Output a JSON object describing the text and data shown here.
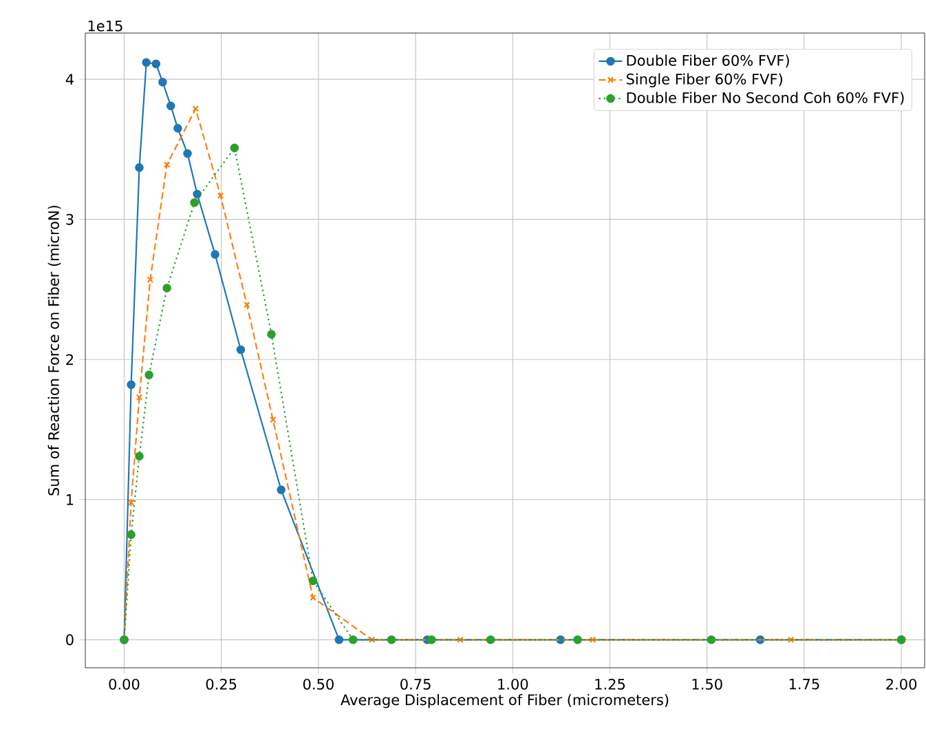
{
  "chart_data": {
    "type": "line",
    "xlabel": "Average Displacement of Fiber (micrometers)",
    "ylabel": "Sum of Reaction Force on Fiber (microN)",
    "annotations": [
      "1e15"
    ],
    "xlim": [
      -0.1,
      2.06
    ],
    "ylim": [
      -0.2,
      4.33
    ],
    "xticks": [
      {
        "value": 0,
        "label": "0.00"
      },
      {
        "value": 0.25,
        "label": "0.25"
      },
      {
        "value": 0.5,
        "label": "0.50"
      },
      {
        "value": 0.75,
        "label": "0.75"
      },
      {
        "value": 1,
        "label": "1.00"
      },
      {
        "value": 1.25,
        "label": "1.25"
      },
      {
        "value": 1.5,
        "label": "1.50"
      },
      {
        "value": 1.75,
        "label": "1.75"
      },
      {
        "value": 2,
        "label": "2.00"
      }
    ],
    "yticks": [
      0,
      1,
      2,
      3,
      4
    ],
    "grid": true,
    "legend": "top right",
    "series": [
      {
        "name": "Double Fiber 60% FVF)",
        "color": "#1f77b4",
        "marker": "circle",
        "line_style": "solid",
        "x": [
          0,
          0.018,
          0.039,
          0.057,
          0.082,
          0.099,
          0.12,
          0.138,
          0.163,
          0.188,
          0.234,
          0.3,
          0.404,
          0.553,
          0.78,
          1.123,
          1.637,
          2.0
        ],
        "values": [
          0,
          1.82,
          3.37,
          4.12,
          4.11,
          3.98,
          3.81,
          3.65,
          3.47,
          3.18,
          2.75,
          2.07,
          1.07,
          0,
          0,
          0,
          0,
          0
        ]
      },
      {
        "name": "Single Fiber 60% FVF)",
        "color": "#ff7f0e",
        "marker": "cross",
        "line_style": "dashed",
        "x": [
          0,
          0.018,
          0.039,
          0.067,
          0.11,
          0.184,
          0.248,
          0.316,
          0.383,
          0.486,
          0.638,
          0.865,
          1.206,
          1.716,
          2.0
        ],
        "values": [
          0,
          0.98,
          1.73,
          2.57,
          3.39,
          3.79,
          3.17,
          2.39,
          1.57,
          0.3,
          0,
          0,
          0,
          0,
          0
        ]
      },
      {
        "name": "Double Fiber No Second Coh 60% FVF)",
        "color": "#2ca02c",
        "marker": "circle",
        "line_style": "dotted",
        "x": [
          0,
          0.018,
          0.039,
          0.064,
          0.11,
          0.181,
          0.284,
          0.379,
          0.486,
          0.589,
          0.688,
          0.791,
          0.943,
          1.167,
          1.511,
          2.0
        ],
        "values": [
          0,
          0.75,
          1.31,
          1.89,
          2.51,
          3.12,
          3.51,
          2.18,
          0.42,
          0,
          0,
          0,
          0,
          0,
          0,
          0
        ]
      }
    ]
  }
}
